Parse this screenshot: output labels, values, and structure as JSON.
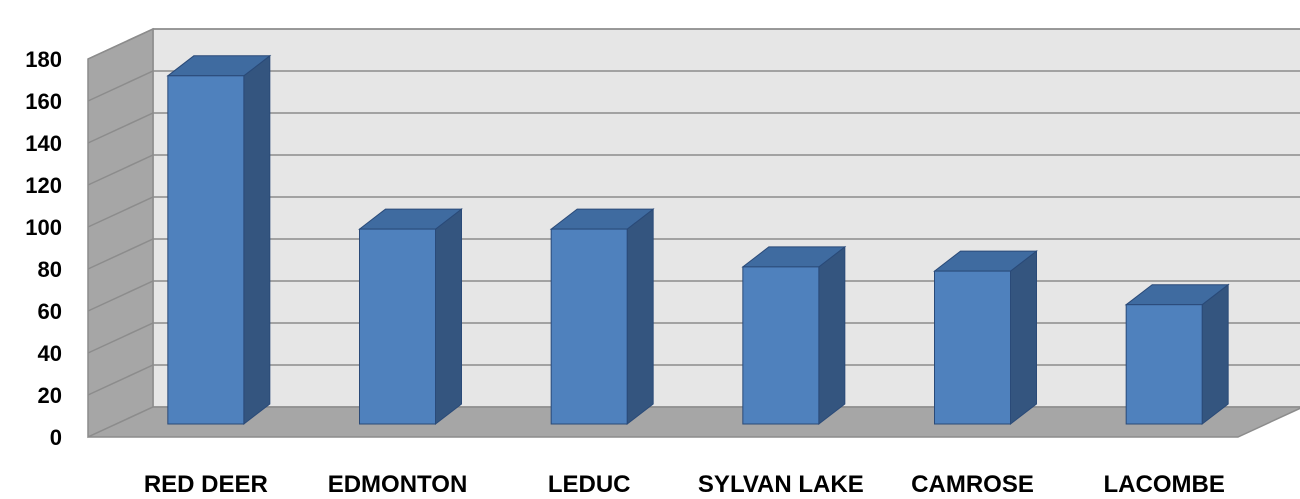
{
  "chart_data": {
    "type": "bar",
    "style": "3d-column",
    "categories": [
      "RED DEER",
      "EDMONTON",
      "LEDUC",
      "SYLVAN LAKE",
      "CAMROSE",
      "LACOMBE"
    ],
    "values": [
      172,
      99,
      99,
      81,
      79,
      63
    ],
    "ylim": [
      0,
      180
    ],
    "yticks": [
      "0",
      "20",
      "40",
      "60",
      "80",
      "100",
      "120",
      "140",
      "160",
      "180"
    ],
    "title": "",
    "xlabel": "",
    "ylabel": "",
    "grid": true,
    "legend": "none"
  },
  "colors": {
    "bar_front": "#4f81bd",
    "bar_side": "#34557f",
    "bar_top": "#3f6ba0",
    "bar_edge": "#2a4a78",
    "back_wall": "#e6e6e6",
    "side_wall": "#a6a6a6",
    "floor": "#a6a6a6",
    "gridline": "#8c8c8c"
  }
}
